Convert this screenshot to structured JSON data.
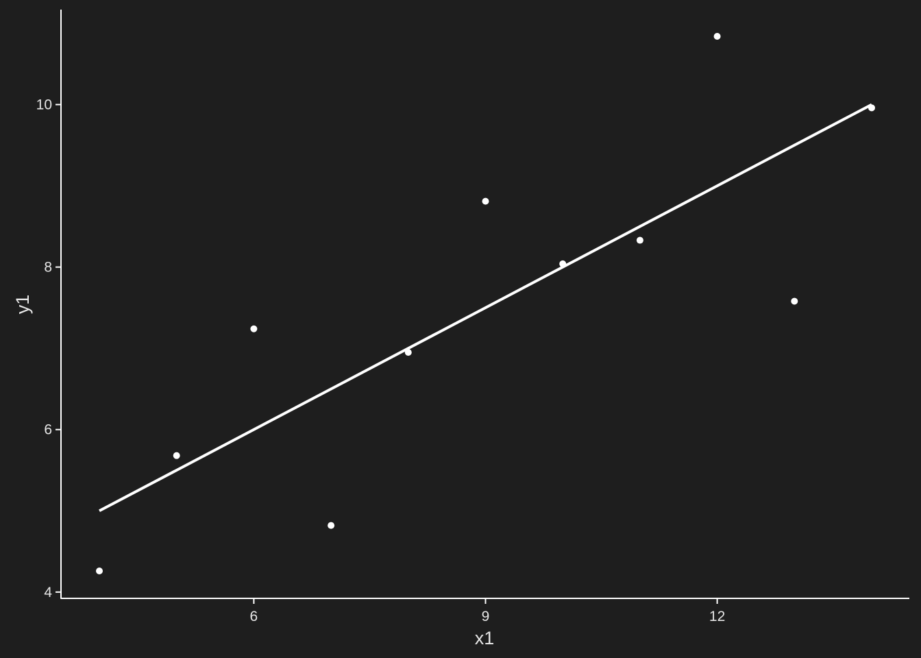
{
  "chart_data": {
    "type": "scatter",
    "xlabel": "x1",
    "ylabel": "y1",
    "xlim": [
      4,
      14
    ],
    "ylim": [
      4.26,
      10.84
    ],
    "xticks": [
      6,
      9,
      12
    ],
    "yticks": [
      4,
      6,
      8,
      10
    ],
    "grid": false,
    "colors": {
      "background": "#1e1e1e",
      "points": "#ffffff",
      "line": "#ffffff",
      "axis": "#ffffff",
      "text": "#e6e6e6"
    },
    "points": [
      {
        "x": 4,
        "y": 4.26
      },
      {
        "x": 5,
        "y": 5.68
      },
      {
        "x": 6,
        "y": 7.24
      },
      {
        "x": 7,
        "y": 4.82
      },
      {
        "x": 8,
        "y": 6.95
      },
      {
        "x": 9,
        "y": 8.81
      },
      {
        "x": 10,
        "y": 8.04
      },
      {
        "x": 11,
        "y": 8.33
      },
      {
        "x": 12,
        "y": 10.84
      },
      {
        "x": 13,
        "y": 7.58
      },
      {
        "x": 14,
        "y": 9.96
      }
    ],
    "fit_line": {
      "type": "linear",
      "from": {
        "x": 4,
        "y": 5.0
      },
      "to": {
        "x": 14,
        "y": 10.0
      }
    }
  }
}
